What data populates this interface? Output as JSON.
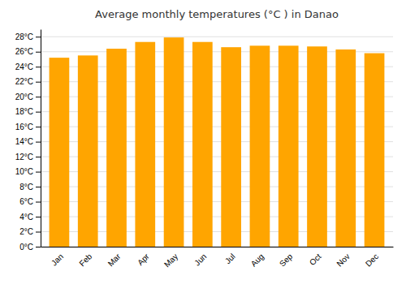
{
  "chart_data": {
    "type": "bar",
    "title": "Average monthly temperatures (°C ) in Danao",
    "categories": [
      "Jan",
      "Feb",
      "Mar",
      "Apr",
      "May",
      "Jun",
      "Jul",
      "Aug",
      "Sep",
      "Oct",
      "Nov",
      "Dec"
    ],
    "values": [
      25.2,
      25.5,
      26.4,
      27.3,
      27.9,
      27.3,
      26.6,
      26.8,
      26.8,
      26.7,
      26.3,
      25.8
    ],
    "color": "#FFA500",
    "ylim": [
      0,
      29
    ],
    "yticks": [
      {
        "value": 0,
        "label": "0°C"
      },
      {
        "value": 2,
        "label": "2°C"
      },
      {
        "value": 4,
        "label": "4°C"
      },
      {
        "value": 6,
        "label": "6°C"
      },
      {
        "value": 8,
        "label": "8°C"
      },
      {
        "value": 10,
        "label": "10°C"
      },
      {
        "value": 12,
        "label": "12°C"
      },
      {
        "value": 14,
        "label": "14°C"
      },
      {
        "value": 16,
        "label": "16°C"
      },
      {
        "value": 18,
        "label": "18°C"
      },
      {
        "value": 20,
        "label": "20°C"
      },
      {
        "value": 22,
        "label": "22°C"
      },
      {
        "value": 24,
        "label": "24°C"
      },
      {
        "value": 26,
        "label": "26°C"
      },
      {
        "value": 28,
        "label": "28°C"
      }
    ],
    "grid": true
  }
}
